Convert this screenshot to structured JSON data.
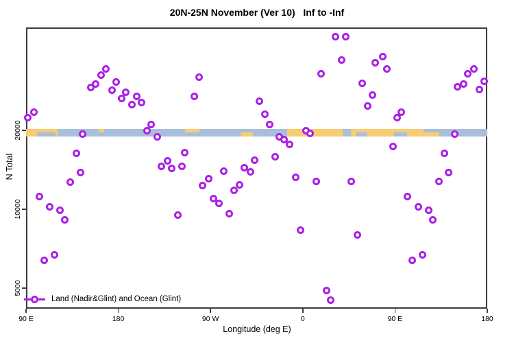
{
  "title": "20N-25N November (Ver 10)   Inf to -Inf",
  "legend": {
    "label": "Land (Nadir&Glint) and Ocean (Glint)"
  },
  "colors": {
    "marker": "#aa20e6",
    "axis": "#3d3d3d",
    "ocean": "#a9bed9",
    "land": "#f7cc73"
  },
  "chart_data": {
    "type": "scatter",
    "title": "20N-25N November (Ver 10)   Inf to -Inf",
    "xlabel": "Longitude (deg E)",
    "ylabel": "N Total",
    "x_axis": {
      "note": "longitude unwrapped eastward: 90E to 180 spanning 450 degrees",
      "min": 90,
      "max": 540,
      "ticks": [
        {
          "value": 90,
          "label": "90 E"
        },
        {
          "value": 180,
          "label": "180"
        },
        {
          "value": 270,
          "label": "90 W"
        },
        {
          "value": 360,
          "label": "0"
        },
        {
          "value": 450,
          "label": "90 E"
        },
        {
          "value": 540,
          "label": "180"
        }
      ]
    },
    "y_axis": {
      "scale": "log",
      "min": 4200,
      "max": 47500,
      "ticks": [
        {
          "value": 5000,
          "label": "5000"
        },
        {
          "value": 10000,
          "label": "10000"
        },
        {
          "value": 20000,
          "label": "20000"
        }
      ]
    },
    "map_strip": {
      "y_center_value": 20000,
      "ocean_color": "#a9bed9",
      "land_color": "#f7cc73",
      "land_segments": [
        {
          "from": 90,
          "to": 121,
          "part": "full"
        },
        {
          "from": 161,
          "to": 166,
          "part": "top"
        },
        {
          "from": 245,
          "to": 259,
          "part": "top"
        },
        {
          "from": 299,
          "to": 311,
          "part": "bottom"
        },
        {
          "from": 345,
          "to": 399,
          "part": "full"
        },
        {
          "from": 407,
          "to": 493,
          "part": "full"
        }
      ],
      "ocean_patches": [
        {
          "from": 101,
          "to": 119,
          "part": "bottom"
        },
        {
          "from": 412,
          "to": 423,
          "part": "bottom"
        },
        {
          "from": 449,
          "to": 462,
          "part": "bottom"
        },
        {
          "from": 478,
          "to": 493,
          "part": "top"
        }
      ]
    },
    "series": [
      {
        "name": "Land (Nadir&Glint) and Ocean (Glint)",
        "marker": "open-circle",
        "color": "#aa20e6",
        "points": [
          [
            92,
            22400
          ],
          [
            98,
            23400
          ],
          [
            103,
            11200
          ],
          [
            108,
            6400
          ],
          [
            113,
            10200
          ],
          [
            118,
            6700
          ],
          [
            123,
            9900
          ],
          [
            128,
            9100
          ],
          [
            133,
            12700
          ],
          [
            139,
            16300
          ],
          [
            143,
            13800
          ],
          [
            145,
            19300
          ],
          [
            153,
            29200
          ],
          [
            158,
            30100
          ],
          [
            163,
            32400
          ],
          [
            168,
            34200
          ],
          [
            174,
            28500
          ],
          [
            178,
            30500
          ],
          [
            183,
            26500
          ],
          [
            187,
            27900
          ],
          [
            193,
            25100
          ],
          [
            198,
            26900
          ],
          [
            203,
            25600
          ],
          [
            208,
            19900
          ],
          [
            212,
            21000
          ],
          [
            218,
            18900
          ],
          [
            222,
            14600
          ],
          [
            228,
            15300
          ],
          [
            232,
            14300
          ],
          [
            238,
            9500
          ],
          [
            242,
            14600
          ],
          [
            245,
            16400
          ],
          [
            254,
            27000
          ],
          [
            259,
            32000
          ],
          [
            262,
            12300
          ],
          [
            268,
            13100
          ],
          [
            273,
            11000
          ],
          [
            278,
            10500
          ],
          [
            283,
            14000
          ],
          [
            288,
            9600
          ],
          [
            293,
            11800
          ],
          [
            298,
            12400
          ],
          [
            303,
            14400
          ],
          [
            309,
            13900
          ],
          [
            313,
            15400
          ],
          [
            318,
            25800
          ],
          [
            323,
            23000
          ],
          [
            328,
            21000
          ],
          [
            333,
            15900
          ],
          [
            337,
            18900
          ],
          [
            342,
            18400
          ],
          [
            347,
            17700
          ],
          [
            353,
            13200
          ],
          [
            358,
            8300
          ],
          [
            363,
            20000
          ],
          [
            367,
            19500
          ],
          [
            373,
            12800
          ],
          [
            378,
            32800
          ],
          [
            383,
            4900
          ],
          [
            387,
            4500
          ],
          [
            392,
            45400
          ],
          [
            398,
            37200
          ],
          [
            402,
            45400
          ],
          [
            407,
            12800
          ],
          [
            413,
            8000
          ],
          [
            418,
            30300
          ],
          [
            423,
            24800
          ],
          [
            428,
            27200
          ],
          [
            431,
            36300
          ],
          [
            438,
            38300
          ],
          [
            442,
            34400
          ],
          [
            448,
            17400
          ],
          [
            452,
            22300
          ],
          [
            456,
            23500
          ],
          [
            462,
            11200
          ],
          [
            467,
            6400
          ],
          [
            473,
            10200
          ],
          [
            477,
            6700
          ],
          [
            483,
            9900
          ],
          [
            487,
            9100
          ],
          [
            493,
            12800
          ],
          [
            498,
            16300
          ],
          [
            502,
            13800
          ],
          [
            508,
            19400
          ],
          [
            511,
            29400
          ],
          [
            517,
            30100
          ],
          [
            521,
            32800
          ],
          [
            527,
            34400
          ],
          [
            532,
            28700
          ],
          [
            537,
            30700
          ]
        ]
      }
    ]
  }
}
